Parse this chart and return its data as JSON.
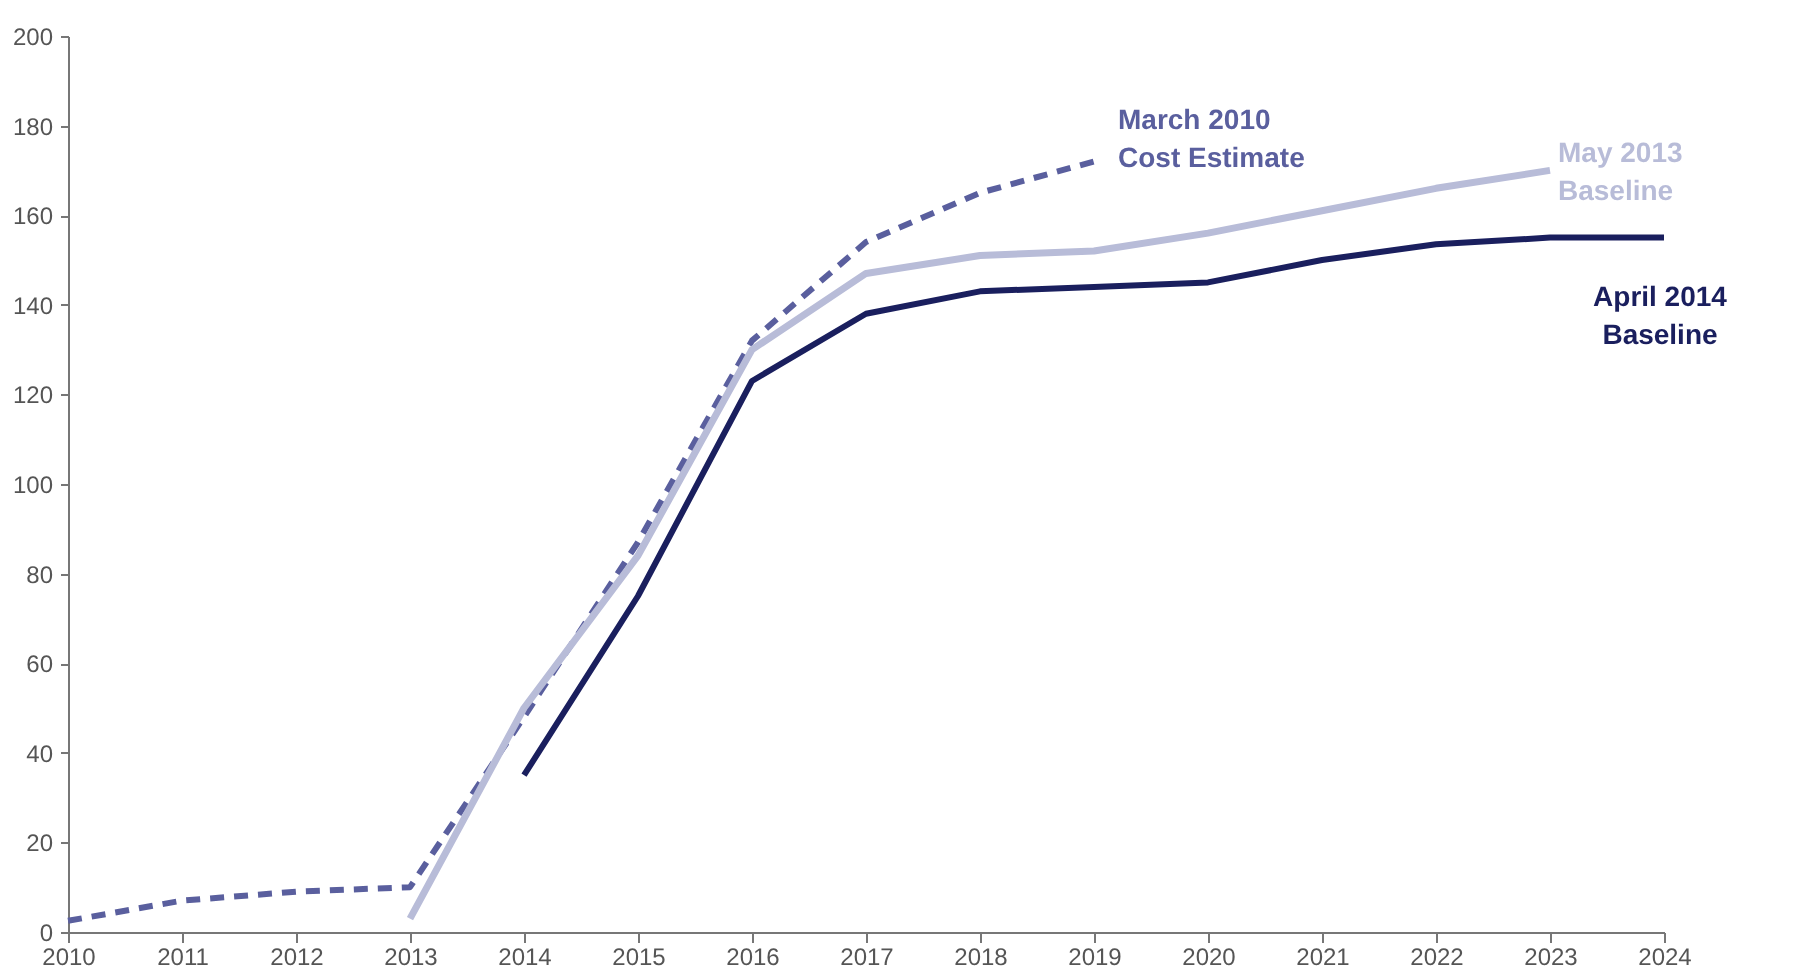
{
  "chart_data": {
    "type": "line",
    "xlim": [
      2010,
      2024
    ],
    "xticks": [
      2010,
      2011,
      2012,
      2013,
      2014,
      2015,
      2016,
      2017,
      2018,
      2019,
      2020,
      2021,
      2022,
      2023,
      2024
    ],
    "ylim": [
      0,
      200
    ],
    "yticks": [
      0,
      20,
      40,
      60,
      80,
      100,
      120,
      140,
      160,
      180,
      200
    ],
    "grid": false,
    "marker": "none",
    "series": [
      {
        "name": "March 2010 Cost Estimate",
        "color": "#5a5f9e",
        "line_style": "dashed",
        "x": [
          2010,
          2011,
          2012,
          2013,
          2014,
          2015,
          2016,
          2017,
          2018,
          2019
        ],
        "values": [
          2.5,
          7,
          9,
          10,
          48,
          87,
          132,
          154,
          165,
          172
        ]
      },
      {
        "name": "May 2013 Baseline",
        "color": "#b8bcd8",
        "line_style": "solid",
        "x": [
          2013,
          2014,
          2015,
          2016,
          2017,
          2018,
          2019,
          2020,
          2021,
          2022,
          2023
        ],
        "values": [
          3,
          50,
          84,
          130,
          147,
          151,
          152,
          156,
          161,
          166,
          170
        ]
      },
      {
        "name": "April 2014 Baseline",
        "color": "#1a1f5e",
        "line_style": "solid",
        "x": [
          2014,
          2015,
          2016,
          2017,
          2018,
          2019,
          2020,
          2021,
          2022,
          2023,
          2024
        ],
        "values": [
          35,
          75,
          123,
          138,
          143,
          144,
          145,
          150,
          153.5,
          155,
          155
        ]
      }
    ]
  }
}
